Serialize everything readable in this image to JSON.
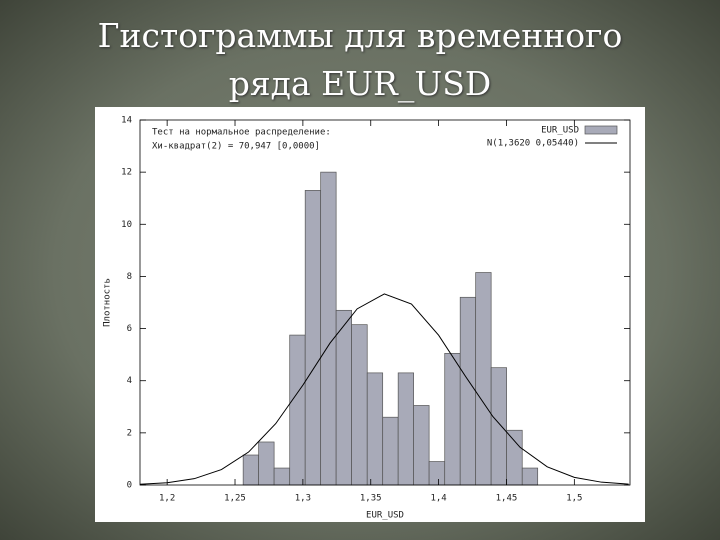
{
  "title_lines": [
    "Гистограммы для временного",
    "ряда EUR_USD"
  ],
  "chart_data": {
    "type": "histogram",
    "x_label": "EUR_USD",
    "y_label": "Плотность",
    "annotations": [
      "Тест на нормальное распределение:",
      "Хи-квадрат(2) = 70,947 [0,0000]"
    ],
    "bins": [
      1.256,
      1.2674,
      1.2788,
      1.2903,
      1.3017,
      1.3131,
      1.3245,
      1.3359,
      1.3474,
      1.3588,
      1.3702,
      1.3816,
      1.393,
      1.4045,
      1.4159,
      1.4273,
      1.4387,
      1.4501,
      1.4616,
      1.473
    ],
    "series": [
      {
        "name": "EUR_USD",
        "color": "#a8aab8",
        "values": [
          1.15,
          1.65,
          0.65,
          5.75,
          11.3,
          12.0,
          6.7,
          6.15,
          4.3,
          2.6,
          4.3,
          3.05,
          0.9,
          5.05,
          7.2,
          8.15,
          4.5,
          2.1,
          0.65
        ]
      }
    ],
    "curve": {
      "name": "N(1,3620 0,05440)",
      "color": "#000000",
      "x": [
        1.18,
        1.2,
        1.22,
        1.24,
        1.26,
        1.28,
        1.3,
        1.32,
        1.34,
        1.36,
        1.38,
        1.4,
        1.42,
        1.44,
        1.46,
        1.48,
        1.5,
        1.52,
        1.54
      ],
      "values": [
        0.027,
        0.087,
        0.243,
        0.593,
        1.264,
        2.355,
        3.83,
        5.443,
        6.757,
        7.328,
        6.942,
        5.745,
        4.153,
        2.623,
        1.447,
        0.697,
        0.293,
        0.108,
        0.035
      ]
    },
    "xlim": [
      1.18,
      1.541
    ],
    "xticks": [
      {
        "value": 1.2,
        "label": "1,2"
      },
      {
        "value": 1.25,
        "label": "1,25"
      },
      {
        "value": 1.3,
        "label": "1,3"
      },
      {
        "value": 1.35,
        "label": "1,35"
      },
      {
        "value": 1.4,
        "label": "1,4"
      },
      {
        "value": 1.45,
        "label": "1,45"
      },
      {
        "value": 1.5,
        "label": "1,5"
      }
    ],
    "ylim": [
      0,
      14
    ],
    "yticks": [
      0,
      2,
      4,
      6,
      8,
      10,
      12,
      14
    ],
    "legend": "upper right"
  }
}
